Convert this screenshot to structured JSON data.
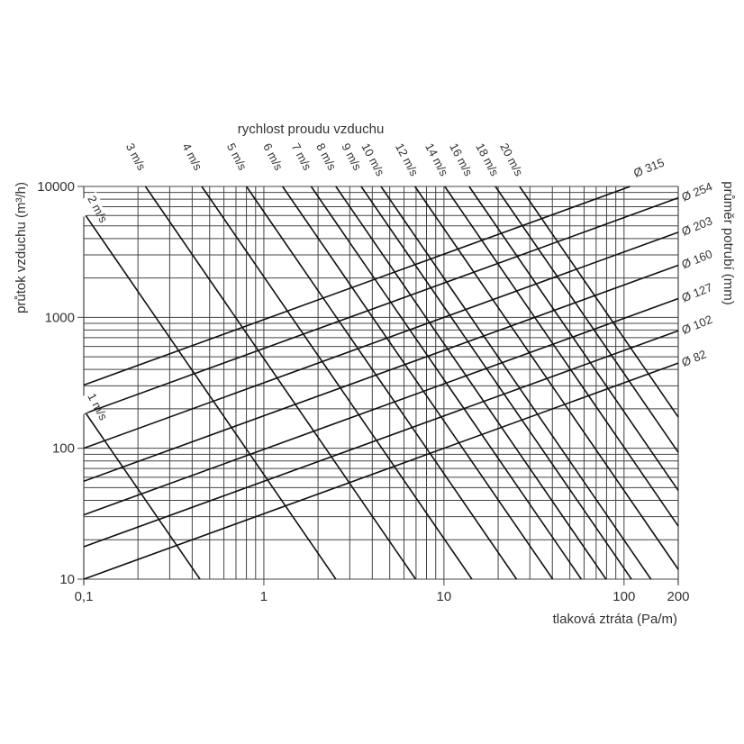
{
  "chart_data": {
    "type": "line",
    "title": "",
    "xlabel": "tlaková ztráta (Pa/m)",
    "ylabel": "průtok vzduchu (m³/h)",
    "top_label": "rychlost proudu vzduchu",
    "right_label": "průměr potrubí (mm)",
    "x_scale": "log",
    "y_scale": "log",
    "xlim": [
      0.1,
      200
    ],
    "ylim": [
      10,
      10000
    ],
    "grid": true,
    "x_ticks": [
      {
        "v": 0.1,
        "label": "0,1"
      },
      {
        "v": 1,
        "label": "1"
      },
      {
        "v": 10,
        "label": "10"
      },
      {
        "v": 100,
        "label": "100"
      },
      {
        "v": 200,
        "label": "200"
      }
    ],
    "y_ticks": [
      {
        "v": 10,
        "label": "10"
      },
      {
        "v": 100,
        "label": "100"
      },
      {
        "v": 1000,
        "label": "1000"
      },
      {
        "v": 10000,
        "label": "10000"
      }
    ],
    "diameter_series": [
      {
        "name": "Ø 315",
        "points": [
          [
            0.1,
            304
          ],
          [
            200,
            13600
          ]
        ]
      },
      {
        "name": "Ø 254",
        "points": [
          [
            0.1,
            183
          ],
          [
            200,
            8180
          ]
        ]
      },
      {
        "name": "Ø 203",
        "points": [
          [
            0.1,
            100
          ],
          [
            200,
            4470
          ]
        ]
      },
      {
        "name": "Ø 160",
        "points": [
          [
            0.1,
            56
          ],
          [
            200,
            2500
          ]
        ]
      },
      {
        "name": "Ø 127",
        "points": [
          [
            0.1,
            31
          ],
          [
            200,
            1390
          ]
        ]
      },
      {
        "name": "Ø 102",
        "points": [
          [
            0.1,
            17.7
          ],
          [
            200,
            790
          ]
        ]
      },
      {
        "name": "Ø 82",
        "points": [
          [
            0.1,
            10
          ],
          [
            200,
            447
          ]
        ]
      }
    ],
    "velocity_series": [
      {
        "name": "1 m/s",
        "points": [
          [
            0.1,
            195
          ],
          [
            0.442,
            10
          ]
        ],
        "label_inside": true
      },
      {
        "name": "2 m/s",
        "points": [
          [
            0.1,
            6300
          ],
          [
            2.51,
            10
          ]
        ],
        "label_inside": true
      },
      {
        "name": "3 m/s",
        "points": [
          [
            0.22,
            10000
          ],
          [
            6.96,
            10
          ]
        ]
      },
      {
        "name": "4 m/s",
        "points": [
          [
            0.452,
            10000
          ],
          [
            14.3,
            10
          ]
        ]
      },
      {
        "name": "5 m/s",
        "points": [
          [
            0.8,
            10000
          ],
          [
            25.3,
            10
          ]
        ]
      },
      {
        "name": "6 m/s",
        "points": [
          [
            1.27,
            10000
          ],
          [
            40.2,
            10
          ]
        ]
      },
      {
        "name": "7 m/s",
        "points": [
          [
            1.83,
            10000
          ],
          [
            57.9,
            10
          ]
        ]
      },
      {
        "name": "8 m/s",
        "points": [
          [
            2.51,
            10000
          ],
          [
            79.4,
            10
          ]
        ]
      },
      {
        "name": "9 m/s",
        "points": [
          [
            3.47,
            10000
          ],
          [
            110,
            10
          ]
        ]
      },
      {
        "name": "10 m/s",
        "points": [
          [
            4.47,
            10000
          ],
          [
            141,
            10
          ]
        ]
      },
      {
        "name": "12 m/s",
        "points": [
          [
            6.9,
            10000
          ],
          [
            218,
            10
          ]
        ]
      },
      {
        "name": "14 m/s",
        "points": [
          [
            10.1,
            10000
          ],
          [
            319,
            10
          ]
        ]
      },
      {
        "name": "16 m/s",
        "points": [
          [
            13.8,
            10000
          ],
          [
            436,
            10
          ]
        ]
      },
      {
        "name": "18 m/s",
        "points": [
          [
            19.3,
            10000
          ],
          [
            610,
            10
          ]
        ]
      },
      {
        "name": "20 m/s",
        "points": [
          [
            26.3,
            10000
          ],
          [
            832,
            10
          ]
        ]
      }
    ],
    "colors": {
      "lines": "#111111",
      "grid": "#444444",
      "text": "#333333"
    }
  }
}
